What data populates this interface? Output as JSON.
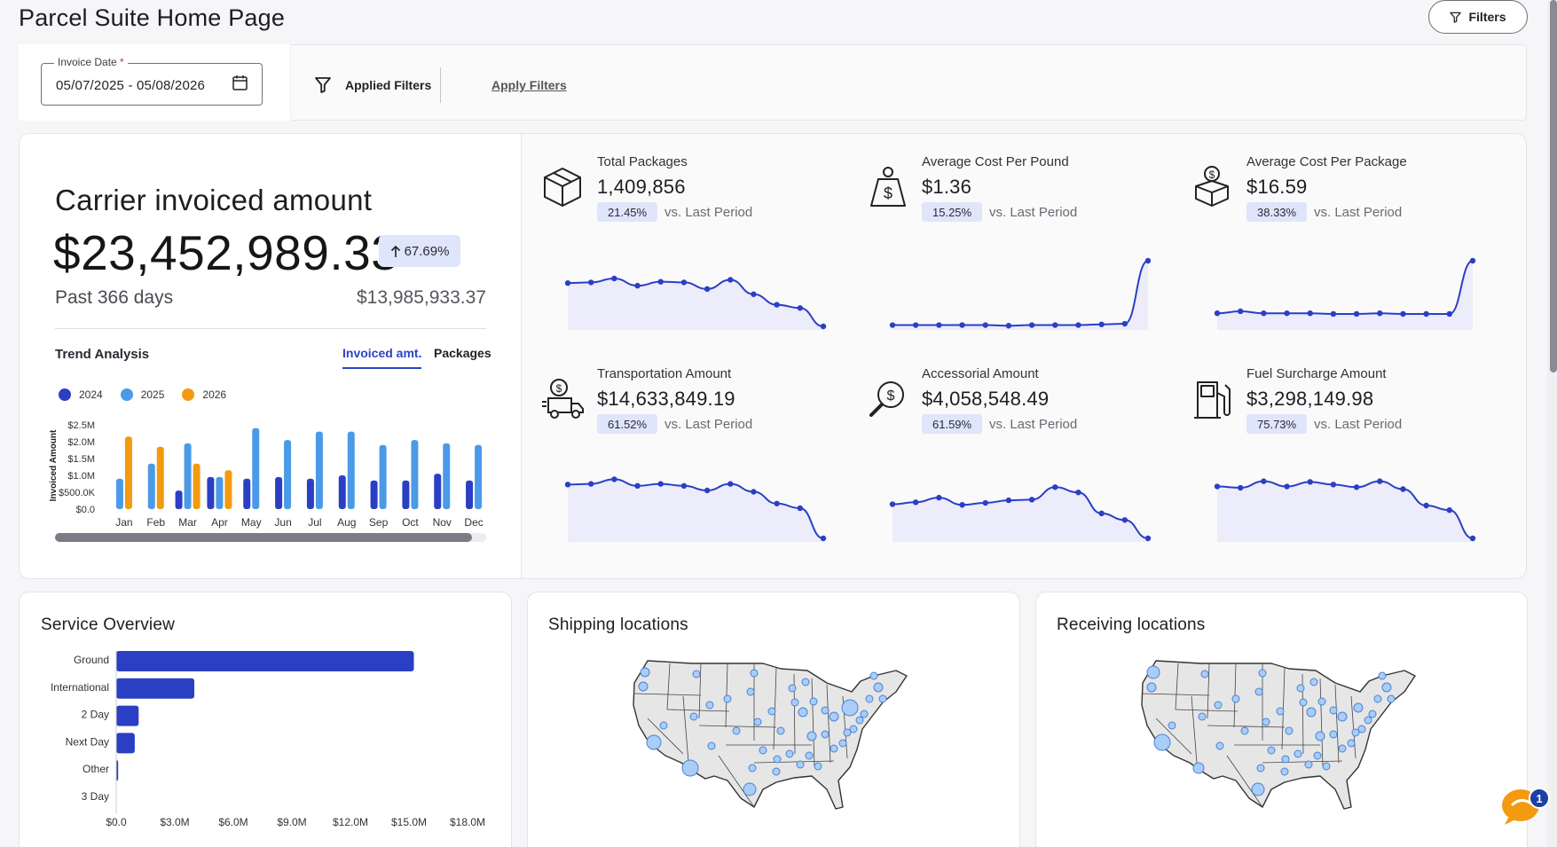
{
  "header": {
    "title": "Parcel Suite Home Page",
    "filters_button": "Filters"
  },
  "filter_bar": {
    "date_label": "Invoice Date",
    "date_required_mark": "*",
    "date_value": "05/07/2025 - 05/08/2026",
    "applied_filters": "Applied Filters",
    "apply_filters": "Apply Filters"
  },
  "carrier": {
    "title": "Carrier invoiced amount",
    "amount": "$23,452,989.33",
    "growth": "67.69%",
    "period": "Past 366 days",
    "previous_amount": "$13,985,933.37"
  },
  "trend": {
    "title": "Trend Analysis",
    "tabs": {
      "invoiced": "Invoiced amt.",
      "packages": "Packages"
    },
    "chart_data": {
      "type": "bar",
      "categories": [
        "Jan",
        "Feb",
        "Mar",
        "Apr",
        "May",
        "Jun",
        "Jul",
        "Aug",
        "Sep",
        "Oct",
        "Nov",
        "Dec"
      ],
      "ylabel": "Invoiced Amount",
      "y_ticks": [
        "$0.0",
        "$500.0K",
        "$1.0M",
        "$1.5M",
        "$2.0M",
        "$2.5M"
      ],
      "ylim": [
        0,
        2500000
      ],
      "series": [
        {
          "name": "2024",
          "color": "#2b3fc4",
          "values": [
            0,
            0,
            550000,
            950000,
            900000,
            950000,
            900000,
            1000000,
            850000,
            850000,
            1050000,
            850000
          ]
        },
        {
          "name": "2025",
          "color": "#4a9ae8",
          "values": [
            900000,
            1350000,
            1950000,
            950000,
            2400000,
            2050000,
            2300000,
            2300000,
            1900000,
            2050000,
            1950000,
            1900000
          ]
        },
        {
          "name": "2026",
          "color": "#f39a11",
          "values": [
            2150000,
            1850000,
            1350000,
            1150000,
            0,
            0,
            0,
            0,
            0,
            0,
            0,
            0
          ]
        }
      ]
    }
  },
  "kpis": [
    {
      "label": "Total Packages",
      "value": "1,409,856",
      "pct": "21.45%",
      "vs": "vs. Last Period",
      "icon": "package-box-icon",
      "spark": [
        0.66,
        0.67,
        0.73,
        0.62,
        0.68,
        0.67,
        0.57,
        0.71,
        0.49,
        0.33,
        0.28,
        0.0
      ]
    },
    {
      "label": "Average Cost Per Pound",
      "value": "$1.36",
      "pct": "15.25%",
      "vs": "vs. Last Period",
      "icon": "weight-dollar-icon",
      "spark": [
        0.02,
        0.02,
        0.02,
        0.02,
        0.02,
        0.01,
        0.02,
        0.02,
        0.02,
        0.03,
        0.04,
        1.0
      ]
    },
    {
      "label": "Average Cost Per Package",
      "value": "$16.59",
      "pct": "38.33%",
      "vs": "vs. Last Period",
      "icon": "dollar-box-icon",
      "spark": [
        0.2,
        0.23,
        0.2,
        0.2,
        0.2,
        0.19,
        0.19,
        0.2,
        0.19,
        0.19,
        0.19,
        1.0
      ]
    },
    {
      "label": "Transportation Amount",
      "value": "$14,633,849.19",
      "pct": "61.52%",
      "vs": "vs. Last Period",
      "icon": "truck-dollar-icon",
      "spark": [
        0.82,
        0.83,
        0.9,
        0.8,
        0.83,
        0.8,
        0.73,
        0.83,
        0.71,
        0.53,
        0.46,
        0.0
      ]
    },
    {
      "label": "Accessorial Amount",
      "value": "$4,058,548.49",
      "pct": "61.59%",
      "vs": "vs. Last Period",
      "icon": "magnifier-dollar-icon",
      "spark": [
        0.52,
        0.55,
        0.62,
        0.51,
        0.54,
        0.58,
        0.59,
        0.78,
        0.7,
        0.38,
        0.28,
        0.0
      ]
    },
    {
      "label": "Fuel Surcharge Amount",
      "value": "$3,298,149.98",
      "pct": "75.73%",
      "vs": "vs. Last Period",
      "icon": "fuel-pump-icon",
      "spark": [
        0.79,
        0.77,
        0.87,
        0.79,
        0.86,
        0.82,
        0.78,
        0.87,
        0.75,
        0.5,
        0.43,
        0.0
      ]
    }
  ],
  "service_overview": {
    "title": "Service Overview",
    "chart_data": {
      "type": "bar",
      "orientation": "horizontal",
      "categories": [
        "Ground",
        "International",
        "2 Day",
        "Next Day",
        "Other",
        "3 Day"
      ],
      "values": [
        15250000,
        4000000,
        1150000,
        950000,
        100000,
        0
      ],
      "x_ticks": [
        "$0.0",
        "$3.0M",
        "$6.0M",
        "$9.0M",
        "$12.0M",
        "$15.0M",
        "$18.0M"
      ],
      "xlim": [
        0,
        18000000
      ],
      "color": "#2b3fc4"
    }
  },
  "shipping": {
    "title": "Shipping locations"
  },
  "receiving": {
    "title": "Receiving locations"
  },
  "chat": {
    "badge": "1"
  }
}
